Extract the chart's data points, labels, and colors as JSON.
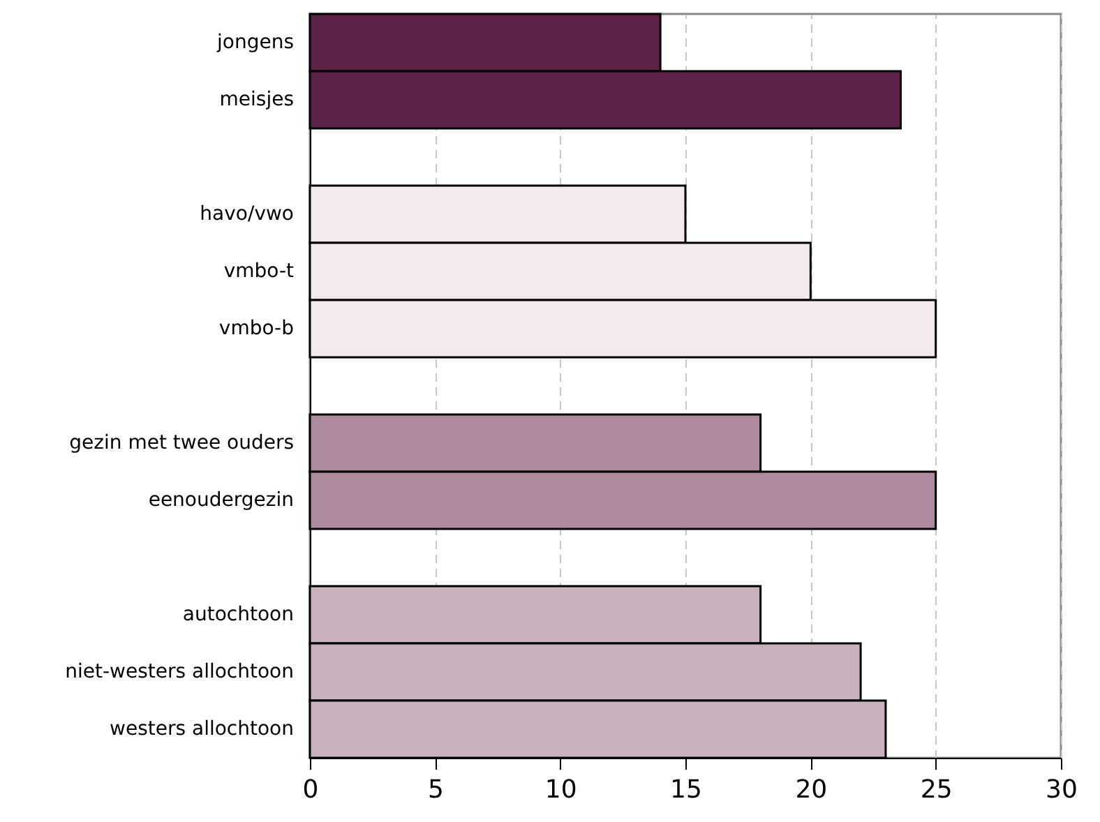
{
  "chart_data": {
    "type": "bar",
    "orientation": "horizontal",
    "categories": [
      "jongens",
      "meisjes",
      null,
      "havo/vwo",
      "vmbo-t",
      "vmbo-b",
      null,
      "gezin met twee ouders",
      "eenoudergezin",
      null,
      "autochtoon",
      "niet-westers allochtoon",
      "westers allochtoon"
    ],
    "values": [
      14,
      23.6,
      null,
      15,
      20,
      25,
      null,
      18,
      25,
      null,
      18,
      22,
      23
    ],
    "colors": [
      "#5c2248",
      "#5c2248",
      null,
      "#f4e9ef",
      "#f4e9ef",
      "#f4e9ef",
      null,
      "#ad8aa0",
      "#ad8aa0",
      null,
      "#c9b1c0",
      "#c9b1c0",
      "#c9b1c0"
    ],
    "xlim": [
      0,
      30
    ],
    "xticks": [
      0,
      5,
      10,
      15,
      20,
      25,
      30
    ],
    "grid": "x"
  }
}
